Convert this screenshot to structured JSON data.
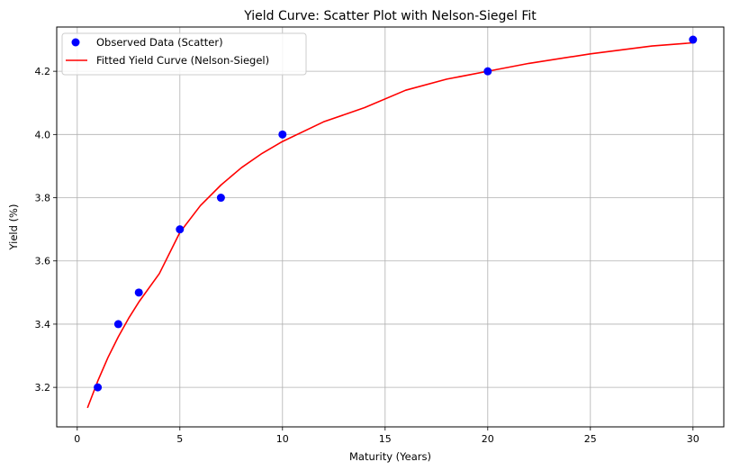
{
  "chart_data": {
    "type": "scatter",
    "title": "Yield Curve: Scatter Plot with Nelson-Siegel Fit",
    "xlabel": "Maturity (Years)",
    "ylabel": "Yield (%)",
    "xlim": [
      -1,
      31.5
    ],
    "ylim": [
      3.075,
      4.34
    ],
    "x_ticks": [
      "0",
      "5",
      "10",
      "15",
      "20",
      "25",
      "30"
    ],
    "y_ticks": [
      "3.2",
      "3.4",
      "3.6",
      "3.8",
      "4.0",
      "4.2"
    ],
    "grid": true,
    "legend_position": "top-left",
    "series": [
      {
        "name": "Observed Data (Scatter)",
        "kind": "scatter",
        "color": "#0000ff",
        "x": [
          1,
          2,
          3,
          5,
          7,
          10,
          20,
          30
        ],
        "y": [
          3.2,
          3.4,
          3.5,
          3.7,
          3.8,
          4.0,
          4.2,
          4.3
        ]
      },
      {
        "name": "Fitted Yield Curve (Nelson-Siegel)",
        "kind": "line",
        "color": "#ff0000",
        "x": [
          0.5,
          1,
          1.5,
          2,
          2.5,
          3,
          4,
          5,
          6,
          7,
          8,
          9,
          10,
          12,
          14,
          16,
          18,
          20,
          22,
          25,
          28,
          30
        ],
        "y": [
          3.135,
          3.22,
          3.295,
          3.36,
          3.418,
          3.47,
          3.56,
          3.69,
          3.775,
          3.84,
          3.895,
          3.94,
          3.978,
          4.04,
          4.085,
          4.14,
          4.175,
          4.2,
          4.225,
          4.255,
          4.28,
          4.29
        ]
      }
    ]
  }
}
